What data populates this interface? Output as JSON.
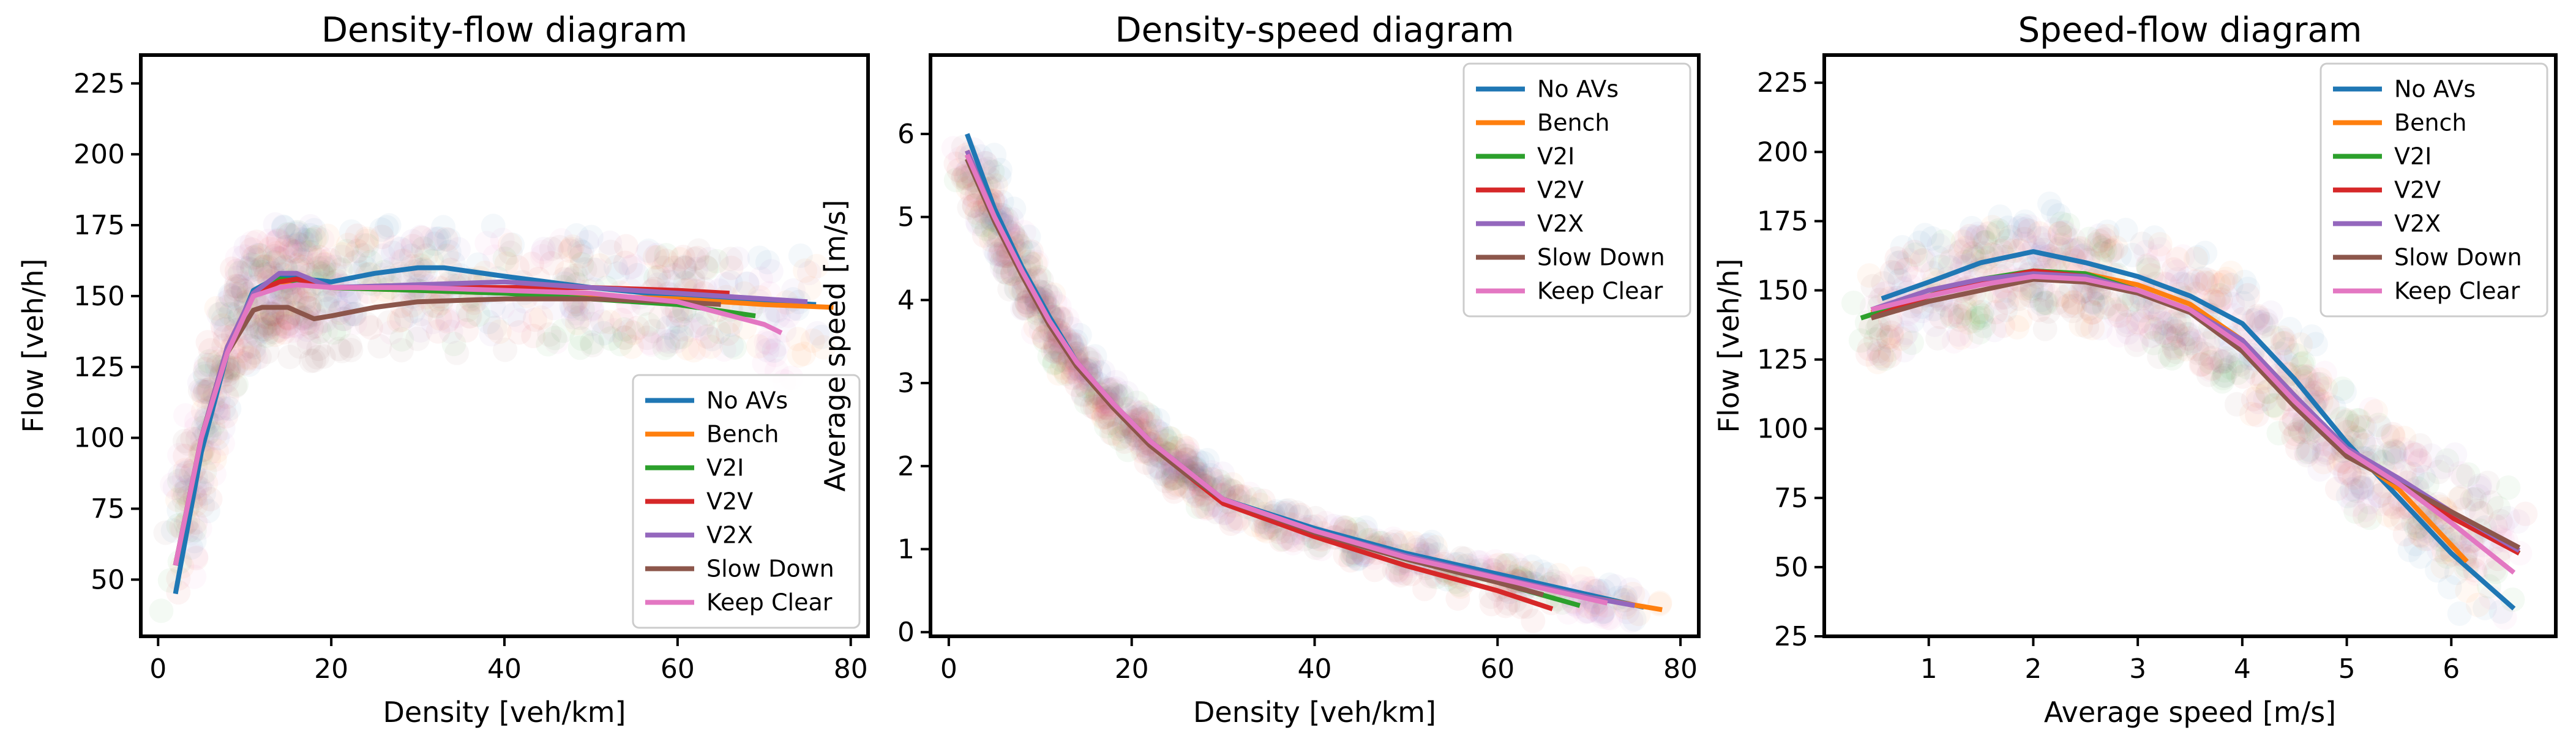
{
  "chart_data": [
    {
      "type": "line",
      "title": "Density-flow diagram",
      "xlabel": "Density [veh/km]",
      "ylabel": "Flow [veh/h]",
      "xlim": [
        -2,
        82
      ],
      "ylim": [
        30,
        235
      ],
      "xticks": [
        0,
        20,
        40,
        60,
        80
      ],
      "xtick_labels": [
        "0",
        "20",
        "40",
        "60",
        "80"
      ],
      "yticks": [
        50,
        75,
        100,
        125,
        150,
        175,
        200,
        225
      ],
      "ytick_labels": [
        "50",
        "75",
        "100",
        "125",
        "150",
        "175",
        "200",
        "225"
      ],
      "legend_position": "lower-right",
      "series": [
        {
          "name": "No AVs",
          "color": "#1f77b4",
          "x": [
            2,
            5,
            8,
            11,
            14,
            17,
            20,
            25,
            30,
            33,
            40,
            50,
            60,
            70,
            76
          ],
          "y": [
            45,
            95,
            130,
            152,
            157,
            156,
            155,
            158,
            160,
            160,
            157,
            153,
            150,
            148,
            147
          ]
        },
        {
          "name": "Bench",
          "color": "#ff7f0e",
          "x": [
            2,
            5,
            8,
            11,
            14,
            16,
            20,
            30,
            40,
            50,
            60,
            70,
            78
          ],
          "y": [
            55,
            100,
            132,
            150,
            155,
            155,
            153,
            152,
            151,
            150,
            149,
            147,
            146
          ]
        },
        {
          "name": "V2I",
          "color": "#2ca02c",
          "x": [
            2,
            5,
            8,
            11,
            14,
            17,
            20,
            30,
            40,
            50,
            60,
            69
          ],
          "y": [
            55,
            100,
            132,
            150,
            156,
            155,
            153,
            152,
            151,
            149,
            147,
            143
          ]
        },
        {
          "name": "V2V",
          "color": "#d62728",
          "x": [
            2,
            5,
            8,
            11,
            14,
            16,
            20,
            30,
            40,
            50,
            60,
            66
          ],
          "y": [
            55,
            100,
            132,
            151,
            155,
            156,
            153,
            153,
            153,
            153,
            152,
            151
          ]
        },
        {
          "name": "V2X",
          "color": "#9467bd",
          "x": [
            2,
            5,
            8,
            11,
            14,
            16,
            20,
            30,
            40,
            50,
            60,
            70,
            75
          ],
          "y": [
            55,
            100,
            132,
            151,
            158,
            158,
            153,
            154,
            155,
            153,
            151,
            149,
            148
          ]
        },
        {
          "name": "Slow Down",
          "color": "#8c564b",
          "x": [
            2,
            5,
            8,
            11,
            12,
            15,
            18,
            20,
            25,
            30,
            40,
            50,
            60,
            65
          ],
          "y": [
            55,
            100,
            130,
            145,
            146,
            146,
            142,
            143,
            146,
            148,
            149,
            149,
            148,
            147
          ]
        },
        {
          "name": "Keep Clear",
          "color": "#e377c2",
          "x": [
            2,
            5,
            8,
            11,
            14,
            16,
            20,
            30,
            40,
            50,
            60,
            70,
            72
          ],
          "y": [
            55,
            100,
            130,
            150,
            153,
            154,
            153,
            153,
            152,
            151,
            148,
            140,
            137
          ]
        }
      ]
    },
    {
      "type": "line",
      "title": "Density-speed diagram",
      "xlabel": "Density [veh/km]",
      "ylabel": "Average speed [m/s]",
      "xlim": [
        -2,
        82
      ],
      "ylim": [
        -0.05,
        6.95
      ],
      "xticks": [
        0,
        20,
        40,
        60,
        80
      ],
      "xtick_labels": [
        "0",
        "20",
        "40",
        "60",
        "80"
      ],
      "yticks": [
        0,
        1,
        2,
        3,
        4,
        5,
        6
      ],
      "ytick_labels": [
        "0",
        "1",
        "2",
        "3",
        "4",
        "5",
        "6"
      ],
      "legend_position": "top-right",
      "series": [
        {
          "name": "No AVs",
          "color": "#1f77b4",
          "x": [
            2,
            5,
            8,
            11,
            14,
            18,
            22,
            26,
            30,
            40,
            50,
            60,
            70,
            76
          ],
          "y": [
            6.0,
            5.1,
            4.4,
            3.8,
            3.25,
            2.75,
            2.3,
            1.95,
            1.6,
            1.25,
            0.95,
            0.7,
            0.45,
            0.3
          ]
        },
        {
          "name": "Bench",
          "color": "#ff7f0e",
          "x": [
            2,
            5,
            8,
            11,
            14,
            18,
            22,
            26,
            30,
            40,
            50,
            60,
            70,
            78
          ],
          "y": [
            5.8,
            5.0,
            4.3,
            3.7,
            3.2,
            2.7,
            2.25,
            1.9,
            1.6,
            1.2,
            0.9,
            0.65,
            0.42,
            0.27
          ]
        },
        {
          "name": "V2I",
          "color": "#2ca02c",
          "x": [
            2,
            5,
            8,
            11,
            14,
            18,
            22,
            26,
            30,
            40,
            50,
            60,
            69
          ],
          "y": [
            5.7,
            4.95,
            4.3,
            3.7,
            3.2,
            2.7,
            2.25,
            1.9,
            1.6,
            1.2,
            0.88,
            0.6,
            0.32
          ]
        },
        {
          "name": "V2V",
          "color": "#d62728",
          "x": [
            2,
            5,
            8,
            11,
            14,
            18,
            22,
            26,
            30,
            40,
            50,
            60,
            66
          ],
          "y": [
            5.75,
            4.95,
            4.3,
            3.7,
            3.2,
            2.7,
            2.25,
            1.9,
            1.55,
            1.15,
            0.8,
            0.5,
            0.28
          ]
        },
        {
          "name": "V2X",
          "color": "#9467bd",
          "x": [
            2,
            5,
            8,
            11,
            14,
            18,
            22,
            26,
            30,
            40,
            50,
            60,
            70,
            75
          ],
          "y": [
            5.8,
            5.0,
            4.35,
            3.75,
            3.25,
            2.75,
            2.3,
            1.95,
            1.6,
            1.22,
            0.92,
            0.66,
            0.42,
            0.32
          ]
        },
        {
          "name": "Slow Down",
          "color": "#8c564b",
          "x": [
            2,
            5,
            8,
            11,
            14,
            18,
            22,
            26,
            30,
            40,
            50,
            60,
            65
          ],
          "y": [
            5.7,
            4.95,
            4.3,
            3.7,
            3.2,
            2.7,
            2.25,
            1.9,
            1.6,
            1.2,
            0.88,
            0.6,
            0.45
          ]
        },
        {
          "name": "Keep Clear",
          "color": "#e377c2",
          "x": [
            2,
            5,
            8,
            11,
            14,
            18,
            22,
            26,
            30,
            40,
            50,
            60,
            70,
            72
          ],
          "y": [
            5.75,
            5.0,
            4.35,
            3.75,
            3.25,
            2.75,
            2.3,
            1.95,
            1.6,
            1.22,
            0.9,
            0.65,
            0.4,
            0.35
          ]
        }
      ]
    },
    {
      "type": "line",
      "title": "Speed-flow diagram",
      "xlabel": "Average speed [m/s]",
      "ylabel": "Flow [veh/h]",
      "xlim": [
        0.0,
        7.0
      ],
      "ylim": [
        25,
        235
      ],
      "xticks": [
        1,
        2,
        3,
        4,
        5,
        6
      ],
      "xtick_labels": [
        "1",
        "2",
        "3",
        "4",
        "5",
        "6"
      ],
      "yticks": [
        25,
        50,
        75,
        100,
        125,
        150,
        175,
        200,
        225
      ],
      "ytick_labels": [
        "25",
        "50",
        "75",
        "100",
        "125",
        "150",
        "175",
        "200",
        "225"
      ],
      "legend_position": "top-right",
      "series": [
        {
          "name": "No AVs",
          "color": "#1f77b4",
          "x": [
            0.55,
            1.0,
            1.5,
            2.0,
            2.5,
            3.0,
            3.5,
            4.0,
            4.5,
            5.0,
            5.5,
            6.0,
            6.6
          ],
          "y": [
            147,
            153,
            160,
            164,
            160,
            155,
            148,
            138,
            118,
            95,
            75,
            55,
            35
          ]
        },
        {
          "name": "Bench",
          "color": "#ff7f0e",
          "x": [
            0.45,
            1.0,
            1.5,
            2.0,
            2.5,
            3.0,
            3.5,
            4.0,
            4.5,
            5.0,
            5.5,
            6.0,
            6.15
          ],
          "y": [
            142,
            148,
            153,
            157,
            156,
            152,
            145,
            132,
            112,
            92,
            78,
            58,
            52
          ]
        },
        {
          "name": "V2I",
          "color": "#2ca02c",
          "x": [
            0.35,
            1.0,
            1.5,
            2.0,
            2.5,
            3.0,
            3.5,
            4.0,
            4.5,
            5.0,
            5.5,
            6.0,
            6.65
          ],
          "y": [
            140,
            148,
            154,
            157,
            156,
            150,
            143,
            130,
            110,
            90,
            80,
            70,
            55
          ]
        },
        {
          "name": "V2V",
          "color": "#d62728",
          "x": [
            0.45,
            1.0,
            1.5,
            2.0,
            2.5,
            3.0,
            3.5,
            4.0,
            4.5,
            5.0,
            5.5,
            6.0,
            6.65
          ],
          "y": [
            140,
            148,
            153,
            157,
            155,
            150,
            143,
            130,
            110,
            92,
            80,
            68,
            55
          ]
        },
        {
          "name": "V2X",
          "color": "#9467bd",
          "x": [
            0.45,
            1.0,
            1.5,
            2.0,
            2.5,
            3.0,
            3.5,
            4.0,
            4.5,
            5.0,
            5.5,
            6.0,
            6.65
          ],
          "y": [
            143,
            150,
            154,
            156,
            155,
            150,
            143,
            132,
            112,
            93,
            82,
            70,
            56
          ]
        },
        {
          "name": "Slow Down",
          "color": "#8c564b",
          "x": [
            0.45,
            1.0,
            1.5,
            2.0,
            2.5,
            3.0,
            3.5,
            4.0,
            4.5,
            5.0,
            5.5,
            6.0,
            6.65
          ],
          "y": [
            140,
            146,
            150,
            154,
            153,
            149,
            142,
            128,
            108,
            90,
            80,
            70,
            57
          ]
        },
        {
          "name": "Keep Clear",
          "color": "#e377c2",
          "x": [
            0.45,
            1.0,
            1.5,
            2.0,
            2.5,
            3.0,
            3.5,
            4.0,
            4.5,
            5.0,
            5.5,
            6.0,
            6.6
          ],
          "y": [
            143,
            148,
            152,
            155,
            154,
            150,
            143,
            130,
            110,
            92,
            80,
            66,
            48
          ]
        }
      ]
    }
  ]
}
